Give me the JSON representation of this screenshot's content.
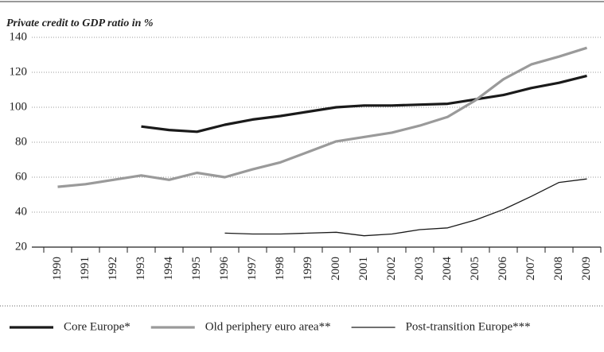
{
  "chart_data": {
    "type": "line",
    "title": "Private credit to GDP ratio in %",
    "categories": [
      "1990",
      "1991",
      "1992",
      "1993",
      "1994",
      "1995",
      "1996",
      "1997",
      "1998",
      "1999",
      "2000",
      "2001",
      "2002",
      "2003",
      "2004",
      "2005",
      "2006",
      "2007",
      "2008",
      "2009"
    ],
    "series": [
      {
        "name": "Core Europe*",
        "color": "#1a1a1a",
        "width": 3.2,
        "values": [
          null,
          null,
          null,
          89,
          87,
          86,
          90,
          93,
          95,
          97.5,
          100,
          101,
          101,
          101.5,
          102,
          104.5,
          107,
          111,
          114,
          118
        ]
      },
      {
        "name": "Old periphery euro area**",
        "color": "#9a9a9a",
        "width": 3.2,
        "values": [
          54.5,
          56,
          58.5,
          61,
          58.5,
          62.5,
          60,
          64.5,
          68.5,
          74.5,
          80.5,
          83,
          85.5,
          89.5,
          94.5,
          104,
          116,
          124.5,
          129,
          134
        ]
      },
      {
        "name": "Post-transition Europe***",
        "color": "#1a1a1a",
        "width": 1.3,
        "values": [
          null,
          null,
          null,
          null,
          null,
          null,
          28,
          27.5,
          27.5,
          28,
          28.5,
          26.5,
          27.5,
          30,
          31,
          35.5,
          41.5,
          49,
          57,
          59
        ]
      }
    ],
    "ylim": [
      20,
      140
    ],
    "yticks": [
      20,
      40,
      60,
      80,
      100,
      120,
      140
    ],
    "grid": true,
    "legend_position": "bottom"
  }
}
